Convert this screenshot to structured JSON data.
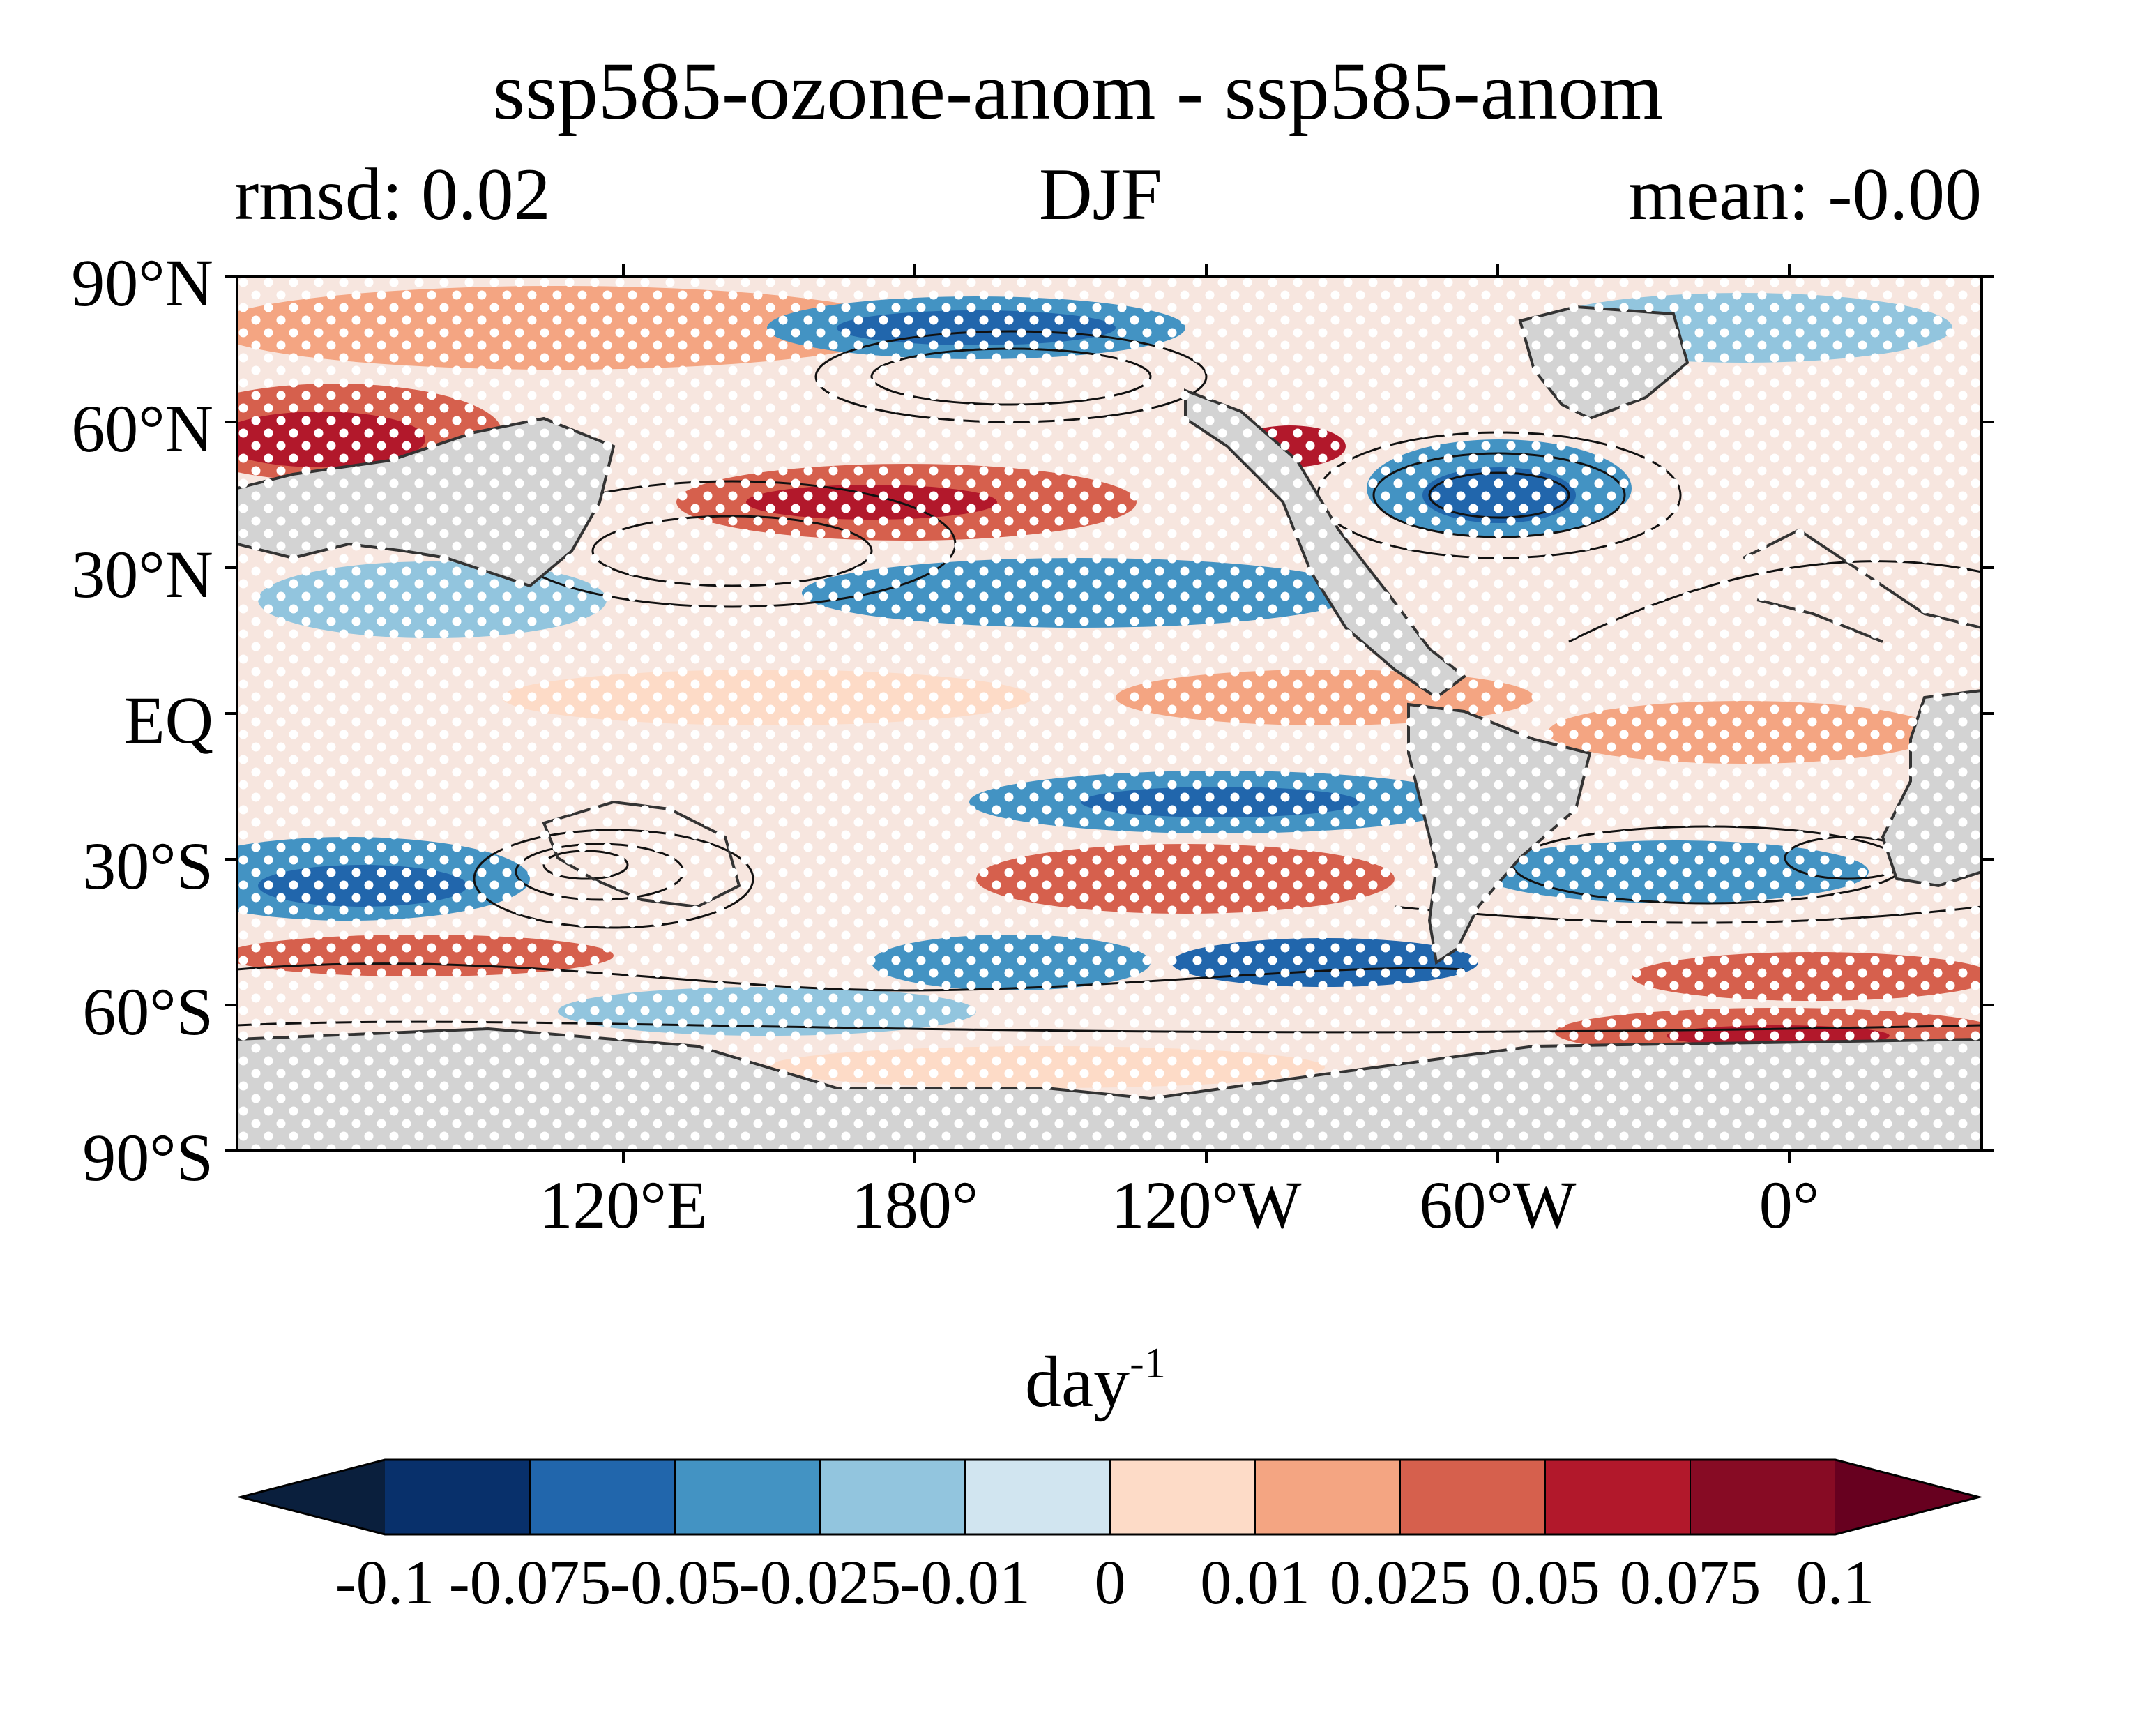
{
  "title": "ssp585-ozone-anom - ssp585-anom",
  "left_subtitle": "rmsd: 0.02",
  "center_subtitle": "DJF",
  "right_subtitle": "mean: -0.00",
  "map": {
    "projection": "PlateCarree",
    "land_color": "#d3d3d3",
    "stippling": "white dots",
    "contours": "black lines"
  },
  "lat_labels": [
    "90°N",
    "60°N",
    "30°N",
    "EQ",
    "30°S",
    "60°S",
    "90°S"
  ],
  "lon_labels": [
    "120°E",
    "180°",
    "120°W",
    "60°W",
    "0°"
  ],
  "colorbar": {
    "unit": "day",
    "unit_exponent": "-1",
    "ticks": [
      "-0.1",
      "-0.075",
      "-0.05",
      "-0.025",
      "-0.01",
      "0",
      "0.01",
      "0.025",
      "0.05",
      "0.075",
      "0.1"
    ],
    "colors": [
      "#08306b",
      "#2166ac",
      "#4393c3",
      "#92c5de",
      "#d1e5f0",
      "#fddbc7",
      "#f4a582",
      "#d6604d",
      "#b2182b",
      "#870b24"
    ],
    "extend_low_color": "#0a1f3d",
    "extend_high_color": "#67001f"
  }
}
